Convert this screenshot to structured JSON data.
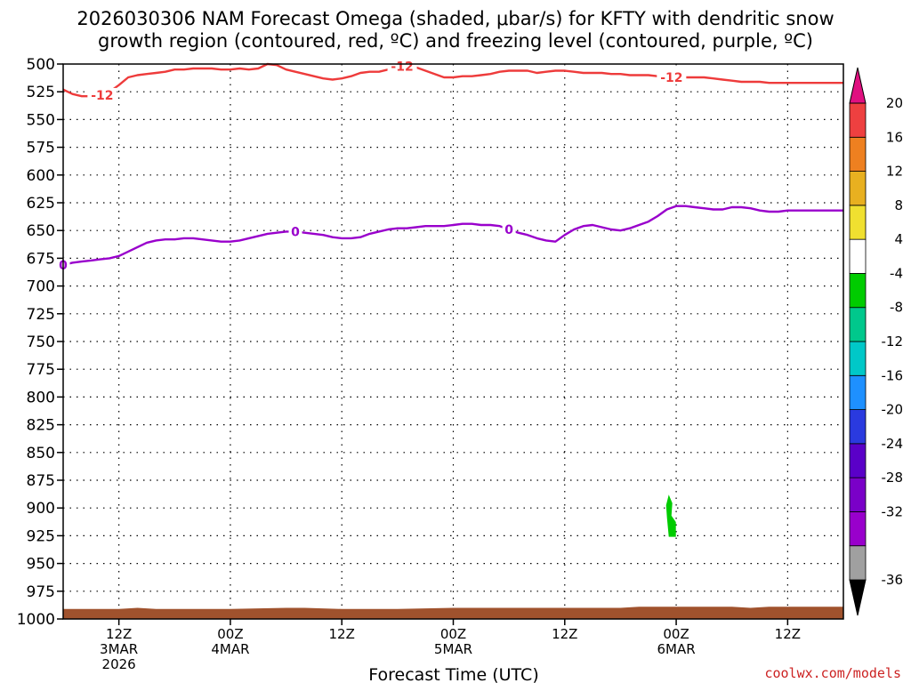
{
  "title": {
    "line1": "2026030306 NAM Forecast Omega (shaded, μbar/s) for KFTY with dendritic snow",
    "line2": "growth region (contoured, red, ºC) and freezing level (contoured, purple, ºC)"
  },
  "credit": "coolwx.com/models",
  "chart_data": {
    "type": "time-height",
    "xlabel": "Forecast Time (UTC)",
    "x_range_hours": [
      0,
      84
    ],
    "y_axis": {
      "reversed": true,
      "ylim": [
        1000,
        500
      ],
      "ticks": [
        500,
        525,
        550,
        575,
        600,
        625,
        650,
        675,
        700,
        725,
        750,
        775,
        800,
        825,
        850,
        875,
        900,
        925,
        950,
        975,
        1000
      ],
      "tick_labels": [
        "500",
        "525",
        "550",
        "575",
        "600",
        "625",
        "650",
        "675",
        "700",
        "725",
        "750",
        "775",
        "800",
        "825",
        "850",
        "875",
        "900",
        "925",
        "950",
        "975",
        "1000"
      ]
    },
    "x_ticks": [
      {
        "hour": 6,
        "lines": [
          "12Z",
          "3MAR",
          "2026"
        ]
      },
      {
        "hour": 18,
        "lines": [
          "00Z",
          "4MAR"
        ]
      },
      {
        "hour": 30,
        "lines": [
          "12Z"
        ]
      },
      {
        "hour": 42,
        "lines": [
          "00Z",
          "5MAR"
        ]
      },
      {
        "hour": 54,
        "lines": [
          "12Z"
        ]
      },
      {
        "hour": 66,
        "lines": [
          "00Z",
          "6MAR"
        ]
      },
      {
        "hour": 78,
        "lines": [
          "12Z"
        ]
      }
    ],
    "grid": true,
    "series": [
      {
        "label": "-12",
        "color": "#ee3b3b",
        "label_hours": [
          4.2,
          36.5,
          65.5
        ],
        "x": [
          0,
          1,
          2,
          3,
          4,
          5,
          6,
          7,
          8,
          9,
          10,
          11,
          12,
          13,
          14,
          15,
          16,
          17,
          18,
          19,
          20,
          21,
          22,
          23,
          24,
          25,
          26,
          27,
          28,
          29,
          30,
          31,
          32,
          33,
          34,
          35,
          36,
          37,
          38,
          39,
          40,
          41,
          42,
          43,
          44,
          45,
          46,
          47,
          48,
          49,
          50,
          51,
          52,
          53,
          54,
          55,
          56,
          57,
          58,
          59,
          60,
          61,
          62,
          63,
          64,
          65,
          66,
          67,
          68,
          69,
          70,
          71,
          72,
          73,
          74,
          75,
          76,
          77,
          78,
          79,
          80,
          81,
          82,
          83,
          84
        ],
        "y": [
          523,
          527,
          529,
          529,
          528,
          525,
          519,
          512,
          510,
          509,
          508,
          507,
          505,
          505,
          504,
          504,
          504,
          505,
          505,
          504,
          505,
          504,
          500,
          501,
          505,
          507,
          509,
          511,
          513,
          514,
          513,
          511,
          508,
          507,
          507,
          505,
          503,
          502,
          503,
          506,
          509,
          512,
          512,
          511,
          511,
          510,
          509,
          507,
          506,
          506,
          506,
          508,
          507,
          506,
          506,
          507,
          508,
          508,
          508,
          509,
          509,
          510,
          510,
          510,
          511,
          512,
          512,
          512,
          512,
          512,
          513,
          514,
          515,
          516,
          516,
          516,
          517,
          517,
          517,
          517,
          517,
          517,
          517,
          517,
          517
        ]
      },
      {
        "label": "0",
        "color": "#9900cc",
        "label_hours": [
          0,
          25,
          48
        ],
        "x": [
          0,
          1,
          2,
          3,
          4,
          5,
          6,
          7,
          8,
          9,
          10,
          11,
          12,
          13,
          14,
          15,
          16,
          17,
          18,
          19,
          20,
          21,
          22,
          23,
          24,
          25,
          26,
          27,
          28,
          29,
          30,
          31,
          32,
          33,
          34,
          35,
          36,
          37,
          38,
          39,
          40,
          41,
          42,
          43,
          44,
          45,
          46,
          47,
          48,
          49,
          50,
          51,
          52,
          53,
          54,
          55,
          56,
          57,
          58,
          59,
          60,
          61,
          62,
          63,
          64,
          65,
          66,
          67,
          68,
          69,
          70,
          71,
          72,
          73,
          74,
          75,
          76,
          77,
          78,
          79,
          80,
          81,
          82,
          83,
          84
        ],
        "y": [
          681,
          679,
          678,
          677,
          676,
          675,
          673,
          669,
          665,
          661,
          659,
          658,
          658,
          657,
          657,
          658,
          659,
          660,
          660,
          659,
          657,
          655,
          653,
          652,
          651,
          651,
          652,
          653,
          654,
          656,
          657,
          657,
          656,
          653,
          651,
          649,
          648,
          648,
          647,
          646,
          646,
          646,
          645,
          644,
          644,
          645,
          645,
          646,
          649,
          652,
          654,
          657,
          659,
          660,
          654,
          649,
          646,
          645,
          647,
          649,
          650,
          648,
          645,
          642,
          637,
          631,
          628,
          628,
          629,
          630,
          631,
          631,
          629,
          629,
          630,
          632,
          633,
          633,
          632,
          632,
          632,
          632,
          632,
          632,
          632
        ]
      }
    ],
    "omega_shaded": [
      {
        "x_center": 65.2,
        "p_top": 888,
        "p_bottom": 926,
        "color": "#00cc00",
        "value_range": [
          -8,
          -4
        ]
      }
    ],
    "surface": {
      "color": "#a0522d",
      "x": [
        0,
        6,
        8,
        10,
        12,
        18,
        24,
        26,
        30,
        36,
        42,
        48,
        54,
        60,
        62,
        66,
        70,
        72,
        74,
        76,
        78,
        84
      ],
      "p": [
        991,
        991,
        990,
        991,
        991,
        991,
        990,
        990,
        991,
        991,
        990,
        990,
        990,
        990,
        989,
        989,
        989,
        989,
        990,
        989,
        989,
        989
      ]
    },
    "colorbar": {
      "min_label": "-36",
      "max_label": "20",
      "colors": [
        "#000000",
        "#a0a0a0",
        "#9900cc",
        "#7a00c8",
        "#5a00c8",
        "#2a3adf",
        "#1e90ff",
        "#00c8c8",
        "#00c88c",
        "#00cc00",
        "#ffffff",
        "#f0e030",
        "#e8b020",
        "#ee8020",
        "#ee4040",
        "#e01080"
      ],
      "labels": [
        "20",
        "16",
        "12",
        "8",
        "4",
        "-4",
        "-8",
        "-12",
        "-16",
        "-20",
        "-24",
        "-28",
        "-32",
        "-36"
      ]
    }
  }
}
